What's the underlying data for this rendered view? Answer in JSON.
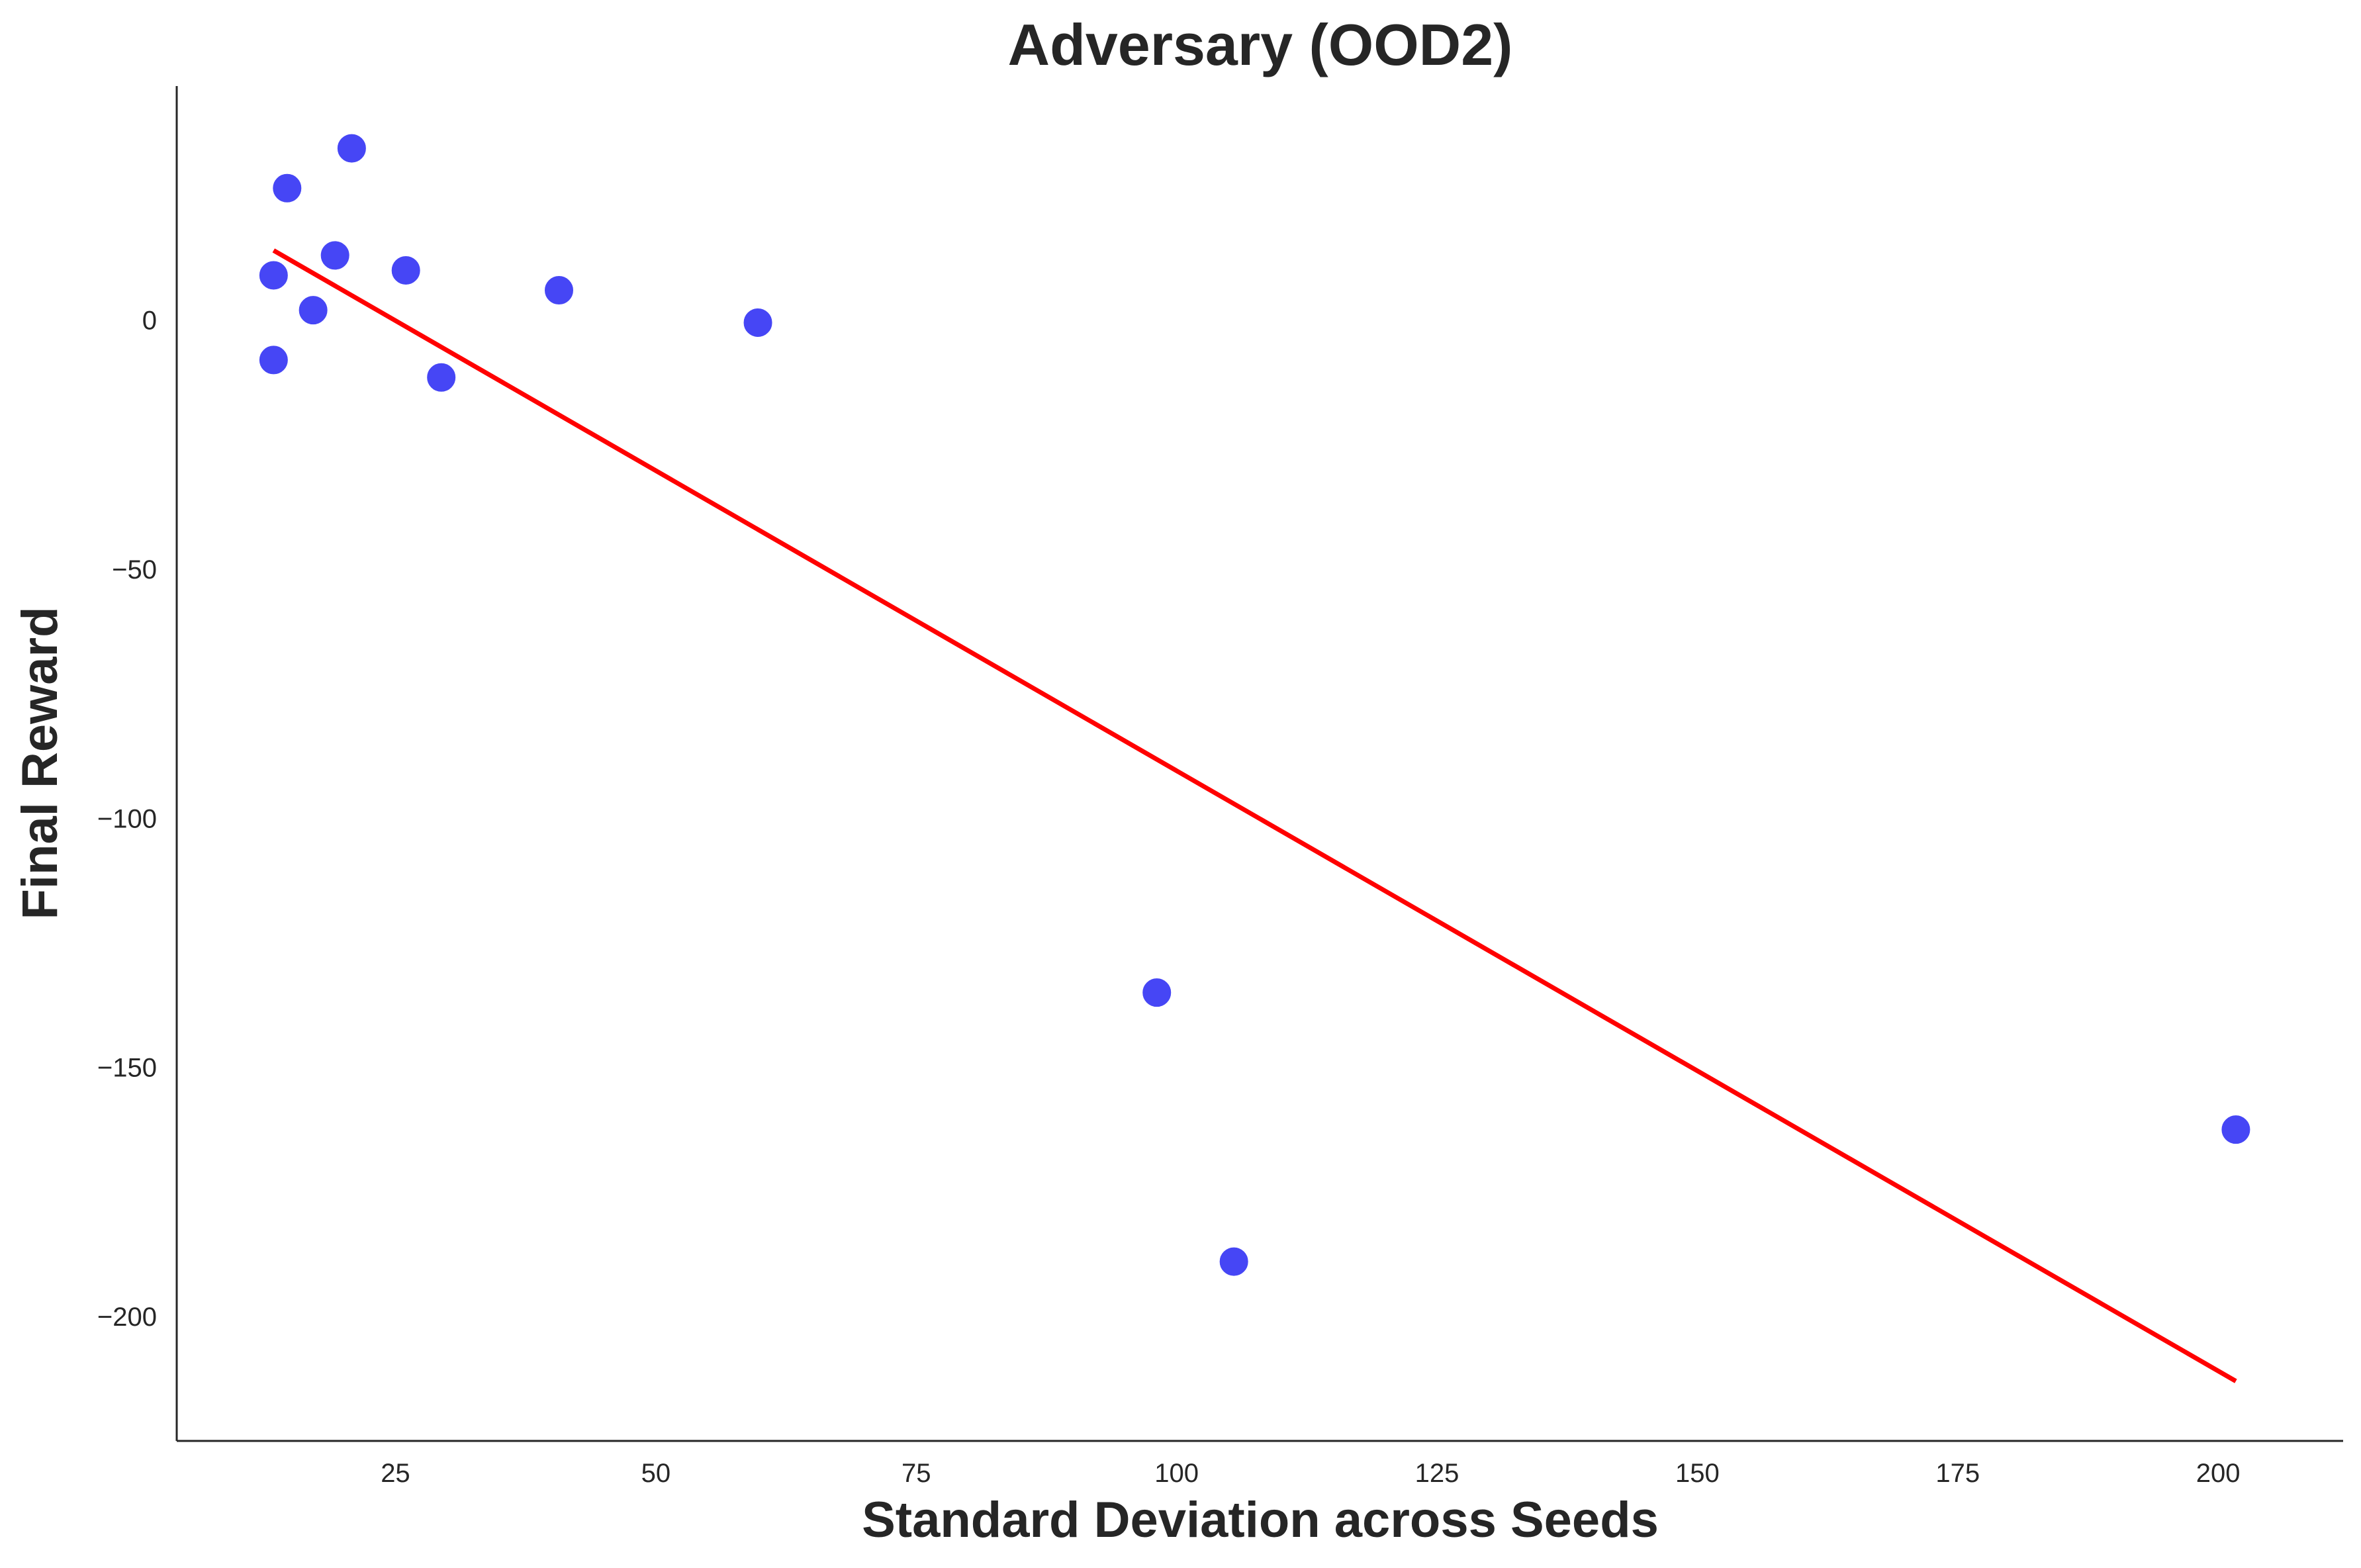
{
  "chart_data": {
    "type": "scatter",
    "title": "Adversary (OOD2)",
    "xlabel": "Standard Deviation across Seeds",
    "ylabel": "Final Reward",
    "xlim": [
      4,
      212
    ],
    "ylim": [
      -225,
      47
    ],
    "xticks": [
      25,
      50,
      75,
      100,
      125,
      150,
      175,
      200
    ],
    "yticks": [
      0,
      -50,
      -100,
      -150,
      -200
    ],
    "xtick_labels": [
      "25",
      "50",
      "75",
      "100",
      "125",
      "150",
      "175",
      "200"
    ],
    "ytick_labels": [
      "0",
      "−50",
      "−100",
      "−150",
      "−200"
    ],
    "points": [
      {
        "x": 13.3,
        "y": 9.0
      },
      {
        "x": 13.3,
        "y": -8.0
      },
      {
        "x": 14.6,
        "y": 26.5
      },
      {
        "x": 17.1,
        "y": 2.0
      },
      {
        "x": 19.2,
        "y": 13.0
      },
      {
        "x": 20.8,
        "y": 34.5
      },
      {
        "x": 26.0,
        "y": 10.0
      },
      {
        "x": 29.4,
        "y": -11.5
      },
      {
        "x": 40.7,
        "y": 6.0
      },
      {
        "x": 59.8,
        "y": -0.5
      },
      {
        "x": 98.1,
        "y": -135.0
      },
      {
        "x": 105.5,
        "y": -189.0
      },
      {
        "x": 201.7,
        "y": -162.5
      }
    ],
    "fit_line": {
      "x": [
        13.3,
        201.7
      ],
      "y": [
        14.0,
        -213.0
      ]
    },
    "colors": {
      "points": "#4646f5",
      "fit_line": "#ff0000",
      "axes": "#262626",
      "text": "#262626"
    }
  }
}
